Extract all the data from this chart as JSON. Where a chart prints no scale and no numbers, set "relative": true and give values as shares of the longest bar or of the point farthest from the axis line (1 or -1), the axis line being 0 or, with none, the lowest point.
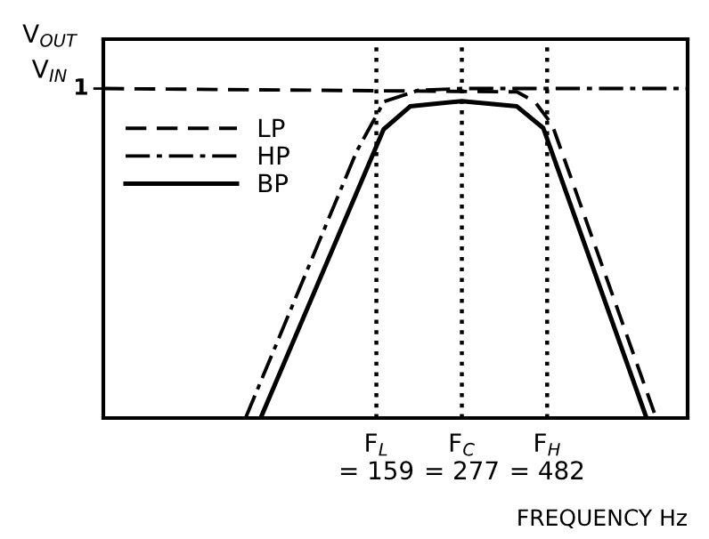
{
  "chart_data": {
    "type": "line",
    "relative": true,
    "log": "x",
    "xlabel": "FREQUENCY Hz",
    "ylabel": "V$_{OUT}$\nV$_{IN}$",
    "xlim": [
      27,
      1200
    ],
    "xticks": [
      {
        "value": 159,
        "label": "F$_{L}$\n= 159"
      },
      {
        "value": 277,
        "label": "F$_{C}$\n= 277"
      },
      {
        "value": 482,
        "label": "F$_{H}$\n= 482"
      }
    ],
    "legend": "top left",
    "grid": false,
    "marker": "none",
    "series": [
      {
        "name": "LP",
        "color": "#000000",
        "line_style": "dashed",
        "x": [
          27,
          396,
          445,
          498,
          978
        ],
        "values": [
          1,
          0.99,
          0.96,
          0.89,
          0
        ]
      },
      {
        "name": "HP",
        "color": "#000000",
        "line_style": "dashdot",
        "x": [
          68,
          140,
          167,
          209,
          277,
          1200
        ],
        "values": [
          0,
          0.81,
          0.96,
          0.995,
          1,
          1
        ]
      },
      {
        "name": "BP",
        "color": "#000000",
        "line_style": "solid",
        "x": [
          75,
          166.6,
          198,
          277,
          396,
          470,
          919
        ],
        "values": [
          0,
          0.876,
          0.946,
          0.962,
          0.946,
          0.88,
          0
        ]
      }
    ],
    "ref_lines": [
      {
        "axis": "x",
        "value": 159,
        "line_style": "dotted",
        "color": "#000000"
      },
      {
        "axis": "x",
        "value": 277,
        "line_style": "dotted",
        "color": "#000000"
      },
      {
        "axis": "x",
        "value": 482,
        "line_style": "dotted",
        "color": "#000000"
      }
    ],
    "annotations": [
      "1"
    ]
  }
}
